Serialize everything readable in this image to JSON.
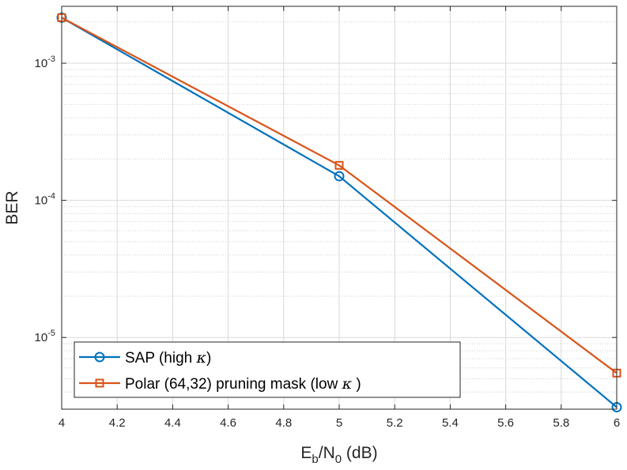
{
  "chart_data": {
    "type": "line",
    "title": "",
    "xlabel": {
      "base": "E",
      "sub1": "b",
      "mid": "/N",
      "sub2": "0",
      "rest": " (dB)"
    },
    "ylabel": "BER",
    "x_scale": "linear",
    "y_scale": "log",
    "xlim": [
      4,
      6
    ],
    "ylim": [
      3e-06,
      0.0026
    ],
    "x_ticks": [
      4,
      4.2,
      4.4,
      4.6,
      4.8,
      5,
      5.2,
      5.4,
      5.6,
      5.8,
      6
    ],
    "x_tick_labels": [
      "4",
      "4.2",
      "4.4",
      "4.6",
      "4.8",
      "5",
      "5.2",
      "5.4",
      "5.6",
      "5.8",
      "6"
    ],
    "y_ticks": [
      {
        "value": 0.001,
        "base": "10",
        "exp": "-3"
      },
      {
        "value": 0.0001,
        "base": "10",
        "exp": "-4"
      },
      {
        "value": 1e-05,
        "base": "10",
        "exp": "-5"
      }
    ],
    "grid": true,
    "minor_grid": true,
    "legend_position": "bottom-left",
    "series": [
      {
        "name": "SAP (high κ)",
        "label_text": "SAP (high ",
        "label_symbol": "κ",
        "label_suffix": ")",
        "color": "#0072BD",
        "marker": "circle",
        "x": [
          4,
          5,
          6
        ],
        "y": [
          0.00215,
          0.00015,
          3.1e-06
        ]
      },
      {
        "name": "Polar (64,32) pruning mask (low κ )",
        "label_text": "Polar (64,32) pruning mask (low ",
        "label_symbol": "κ",
        "label_suffix": " )",
        "color": "#D95319",
        "marker": "square",
        "x": [
          4,
          5,
          6
        ],
        "y": [
          0.00215,
          0.00018,
          5.5e-06
        ]
      }
    ]
  }
}
